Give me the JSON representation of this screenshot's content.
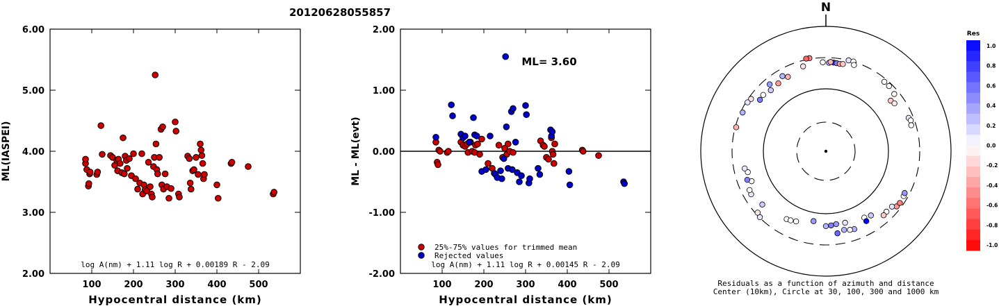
{
  "page_title": "20120628055857",
  "chart_data": [
    {
      "type": "scatter",
      "xlabel": "Hypocentral distance (km)",
      "ylabel": "ML(IASPEI)",
      "xlim": [
        0,
        600
      ],
      "ylim": [
        2.0,
        6.0
      ],
      "x_ticks": [
        "100",
        "200",
        "300",
        "400",
        "500"
      ],
      "y_ticks": [
        "2.00",
        "3.00",
        "4.00",
        "5.00",
        "6.00"
      ],
      "formula": "log A(nm) + 1.11 log R + 0.00189 R - 2.09",
      "point_color": "#cc0000",
      "points": [
        [
          85,
          3.8
        ],
        [
          85,
          3.87
        ],
        [
          88,
          3.7
        ],
        [
          92,
          3.43
        ],
        [
          93,
          3.47
        ],
        [
          95,
          3.63
        ],
        [
          96,
          3.66
        ],
        [
          112,
          3.62
        ],
        [
          114,
          3.66
        ],
        [
          122,
          4.42
        ],
        [
          125,
          3.95
        ],
        [
          145,
          3.93
        ],
        [
          150,
          3.9
        ],
        [
          155,
          3.77
        ],
        [
          160,
          3.85
        ],
        [
          162,
          3.68
        ],
        [
          164,
          3.87
        ],
        [
          168,
          3.8
        ],
        [
          172,
          3.65
        ],
        [
          175,
          4.22
        ],
        [
          178,
          3.63
        ],
        [
          180,
          3.92
        ],
        [
          183,
          3.85
        ],
        [
          185,
          3.72
        ],
        [
          190,
          3.88
        ],
        [
          195,
          3.6
        ],
        [
          200,
          3.96
        ],
        [
          205,
          3.55
        ],
        [
          210,
          3.38
        ],
        [
          215,
          3.48
        ],
        [
          220,
          3.96
        ],
        [
          222,
          3.3
        ],
        [
          225,
          3.45
        ],
        [
          228,
          3.37
        ],
        [
          232,
          3.35
        ],
        [
          236,
          3.82
        ],
        [
          240,
          3.42
        ],
        [
          243,
          3.3
        ],
        [
          245,
          3.25
        ],
        [
          248,
          3.75
        ],
        [
          250,
          3.9
        ],
        [
          252,
          5.25
        ],
        [
          254,
          4.12
        ],
        [
          256,
          3.7
        ],
        [
          258,
          3.63
        ],
        [
          262,
          3.9
        ],
        [
          266,
          4.36
        ],
        [
          268,
          3.45
        ],
        [
          270,
          4.4
        ],
        [
          272,
          3.38
        ],
        [
          276,
          3.63
        ],
        [
          280,
          3.42
        ],
        [
          285,
          3.23
        ],
        [
          290,
          3.39
        ],
        [
          300,
          4.48
        ],
        [
          302,
          4.33
        ],
        [
          308,
          3.3
        ],
        [
          310,
          3.25
        ],
        [
          330,
          3.92
        ],
        [
          334,
          3.88
        ],
        [
          336,
          3.48
        ],
        [
          338,
          3.38
        ],
        [
          342,
          3.68
        ],
        [
          345,
          3.7
        ],
        [
          350,
          3.9
        ],
        [
          355,
          3.62
        ],
        [
          360,
          4.12
        ],
        [
          362,
          4.02
        ],
        [
          364,
          3.93
        ],
        [
          366,
          3.8
        ],
        [
          368,
          3.55
        ],
        [
          370,
          3.62
        ],
        [
          400,
          3.45
        ],
        [
          403,
          3.23
        ],
        [
          434,
          3.8
        ],
        [
          436,
          3.82
        ],
        [
          475,
          3.75
        ],
        [
          535,
          3.3
        ],
        [
          537,
          3.33
        ]
      ]
    },
    {
      "type": "scatter",
      "xlabel": "Hypocentral distance (km)",
      "ylabel": "ML - ML(evt)",
      "xlim": [
        0,
        600
      ],
      "ylim": [
        -2.0,
        2.0
      ],
      "x_ticks": [
        "100",
        "200",
        "300",
        "400",
        "500"
      ],
      "y_ticks": [
        "-2.00",
        "-1.00",
        "0.00",
        "1.00",
        "2.00"
      ],
      "zero_line": 0.0,
      "annotation": "ML= 3.60",
      "formula": "log A(nm) + 1.11 log R + 0.00145 R - 2.09",
      "legend": [
        {
          "label": "25%-75% values for trimmed mean",
          "color": "#cc0000"
        },
        {
          "label": "Rejected values",
          "color": "#0000cc"
        }
      ],
      "series": [
        {
          "name": "25%-75% values for trimmed mean",
          "color": "#cc0000",
          "points": [
            [
              85,
              0.15
            ],
            [
              88,
              -0.18
            ],
            [
              90,
              -0.22
            ],
            [
              92,
              0.02
            ],
            [
              95,
              0.0
            ],
            [
              112,
              -0.02
            ],
            [
              115,
              0.0
            ],
            [
              145,
              0.15
            ],
            [
              150,
              0.1
            ],
            [
              155,
              0.08
            ],
            [
              160,
              0.12
            ],
            [
              162,
              -0.02
            ],
            [
              168,
              0.15
            ],
            [
              172,
              0.0
            ],
            [
              178,
              -0.02
            ],
            [
              180,
              0.1
            ],
            [
              185,
              0.12
            ],
            [
              190,
              -0.05
            ],
            [
              195,
              0.2
            ],
            [
              210,
              -0.2
            ],
            [
              220,
              -0.28
            ],
            [
              236,
              0.1
            ],
            [
              245,
              -0.1
            ],
            [
              250,
              0.05
            ],
            [
              255,
              -0.05
            ],
            [
              258,
              0.12
            ],
            [
              262,
              0.0
            ],
            [
              270,
              -0.02
            ],
            [
              336,
              0.17
            ],
            [
              342,
              0.1
            ],
            [
              345,
              0.08
            ],
            [
              350,
              -0.1
            ],
            [
              355,
              -0.13
            ],
            [
              362,
              0.22
            ],
            [
              364,
              0.0
            ],
            [
              366,
              -0.05
            ],
            [
              368,
              -0.2
            ],
            [
              370,
              0.12
            ],
            [
              436,
              0.02
            ],
            [
              438,
              0.0
            ],
            [
              475,
              -0.07
            ]
          ]
        },
        {
          "name": "Rejected values",
          "color": "#0000cc",
          "points": [
            [
              85,
              0.23
            ],
            [
              122,
              0.76
            ],
            [
              125,
              0.58
            ],
            [
              145,
              0.28
            ],
            [
              150,
              0.22
            ],
            [
              155,
              0.25
            ],
            [
              165,
              0.15
            ],
            [
              175,
              0.55
            ],
            [
              178,
              0.27
            ],
            [
              183,
              0.25
            ],
            [
              195,
              -0.33
            ],
            [
              205,
              -0.3
            ],
            [
              215,
              0.25
            ],
            [
              225,
              -0.36
            ],
            [
              228,
              -0.38
            ],
            [
              232,
              -0.43
            ],
            [
              240,
              -0.32
            ],
            [
              243,
              -0.45
            ],
            [
              248,
              -0.12
            ],
            [
              252,
              1.55
            ],
            [
              254,
              0.4
            ],
            [
              258,
              -0.28
            ],
            [
              266,
              0.65
            ],
            [
              268,
              -0.3
            ],
            [
              270,
              0.7
            ],
            [
              276,
              0.15
            ],
            [
              280,
              -0.35
            ],
            [
              285,
              -0.5
            ],
            [
              290,
              -0.4
            ],
            [
              300,
              0.75
            ],
            [
              302,
              0.6
            ],
            [
              308,
              -0.52
            ],
            [
              310,
              -0.45
            ],
            [
              330,
              -0.28
            ],
            [
              334,
              -0.38
            ],
            [
              360,
              0.35
            ],
            [
              362,
              0.25
            ],
            [
              364,
              0.32
            ],
            [
              404,
              -0.33
            ],
            [
              406,
              -0.55
            ],
            [
              535,
              -0.5
            ],
            [
              537,
              -0.53
            ]
          ]
        }
      ]
    },
    {
      "type": "scatter",
      "subtype": "polar residual map",
      "north_label": "N",
      "caption_line1": "Residuals as a function of azimuth and distance",
      "caption_line2": "Center (10km), Circle at 30, 100, 300 and 1000 km",
      "colorbar": {
        "title": "Res",
        "labels": [
          "1.0",
          "0.8",
          "0.6",
          "0.4",
          "0.2",
          "0.0",
          "-0.2",
          "-0.4",
          "-0.6",
          "-0.8",
          "-1.0"
        ],
        "min": -1.0,
        "max": 1.0,
        "positive_color": "#0000ff",
        "negative_color": "#ff0000"
      },
      "stations": [
        {
          "az": 350,
          "dist": 310,
          "res": -0.5
        },
        {
          "az": 348,
          "dist": 312,
          "res": -0.6
        },
        {
          "az": 2,
          "dist": 250,
          "res": 0.3
        },
        {
          "az": 5,
          "dist": 255,
          "res": 0.8
        },
        {
          "az": 7,
          "dist": 252,
          "res": 0.5
        },
        {
          "az": 3,
          "dist": 258,
          "res": -0.3
        },
        {
          "az": -2,
          "dist": 255,
          "res": 0.0
        },
        {
          "az": 9,
          "dist": 250,
          "res": -0.4
        },
        {
          "az": 11,
          "dist": 253,
          "res": -0.2
        },
        {
          "az": 14,
          "dist": 300,
          "res": 0.1
        },
        {
          "az": 17,
          "dist": 302,
          "res": 0.0
        },
        {
          "az": 18,
          "dist": 270,
          "res": 0.0
        },
        {
          "az": 345,
          "dist": 245,
          "res": -0.1
        },
        {
          "az": 330,
          "dist": 235,
          "res": 0.3
        },
        {
          "az": 325,
          "dist": 205,
          "res": -0.4
        },
        {
          "az": 333,
          "dist": 210,
          "res": -0.3
        },
        {
          "az": 320,
          "dist": 240,
          "res": 0.4
        },
        {
          "az": 318,
          "dist": 200,
          "res": 0.2
        },
        {
          "az": 312,
          "dist": 215,
          "res": 0.0
        },
        {
          "az": 305,
          "dist": 275,
          "res": -0.1
        },
        {
          "az": 308,
          "dist": 210,
          "res": 0.5
        },
        {
          "az": 302,
          "dist": 285,
          "res": 0.1
        },
        {
          "az": 295,
          "dist": 280,
          "res": 0.3
        },
        {
          "az": 285,
          "dist": 290,
          "res": -0.3
        },
        {
          "az": 40,
          "dist": 270,
          "res": 0.0
        },
        {
          "az": 44,
          "dist": 270,
          "res": 0.0
        },
        {
          "az": 50,
          "dist": 255,
          "res": 0.0
        },
        {
          "az": 52,
          "dist": 200,
          "res": -0.2
        },
        {
          "az": 55,
          "dist": 210,
          "res": -0.1
        },
        {
          "az": 68,
          "dist": 255,
          "res": 0.1
        },
        {
          "az": 70,
          "dist": 265,
          "res": 0.0
        },
        {
          "az": 73,
          "dist": 255,
          "res": 0.0
        },
        {
          "az": 225,
          "dist": 295,
          "res": 0.1
        },
        {
          "az": 228,
          "dist": 280,
          "res": -0.1
        },
        {
          "az": 230,
          "dist": 205,
          "res": 0.2
        },
        {
          "az": 240,
          "dist": 230,
          "res": 0.1
        },
        {
          "az": 243,
          "dist": 225,
          "res": 0.0
        },
        {
          "az": 248,
          "dist": 185,
          "res": 0.0
        },
        {
          "az": 210,
          "dist": 175,
          "res": 0.0
        },
        {
          "az": 207,
          "dist": 170,
          "res": 0.0
        },
        {
          "az": 203,
          "dist": 162,
          "res": 0.0
        },
        {
          "az": 190,
          "dist": 135,
          "res": 0.4
        },
        {
          "az": 180,
          "dist": 155,
          "res": 0.3
        },
        {
          "az": 176,
          "dist": 152,
          "res": 0.5
        },
        {
          "az": 172,
          "dist": 148,
          "res": 0.4
        },
        {
          "az": 255,
          "dist": 190,
          "res": 0.0
        },
        {
          "az": 258,
          "dist": 205,
          "res": 0.1
        },
        {
          "az": 250,
          "dist": 210,
          "res": 0.5
        },
        {
          "az": 165,
          "dist": 150,
          "res": 0.1
        },
        {
          "az": 150,
          "dist": 165,
          "res": 0.0
        },
        {
          "az": 128,
          "dist": 260,
          "res": -0.4
        },
        {
          "az": 125,
          "dist": 265,
          "res": -0.5
        },
        {
          "az": 120,
          "dist": 260,
          "res": 0.0
        },
        {
          "az": 118,
          "dist": 255,
          "res": 0.4
        },
        {
          "az": 130,
          "dist": 230,
          "res": 0.1
        },
        {
          "az": 135,
          "dist": 225,
          "res": 0.0
        },
        {
          "az": 138,
          "dist": 230,
          "res": -0.2
        },
        {
          "az": 145,
          "dist": 175,
          "res": 0.2
        },
        {
          "az": 150,
          "dist": 190,
          "res": 1.0
        },
        {
          "az": 160,
          "dist": 205,
          "res": 0.3
        },
        {
          "az": 163,
          "dist": 200,
          "res": 0.0
        },
        {
          "az": 167,
          "dist": 190,
          "res": 0.3
        },
        {
          "az": 172,
          "dist": 205,
          "res": 0.6
        }
      ]
    }
  ]
}
